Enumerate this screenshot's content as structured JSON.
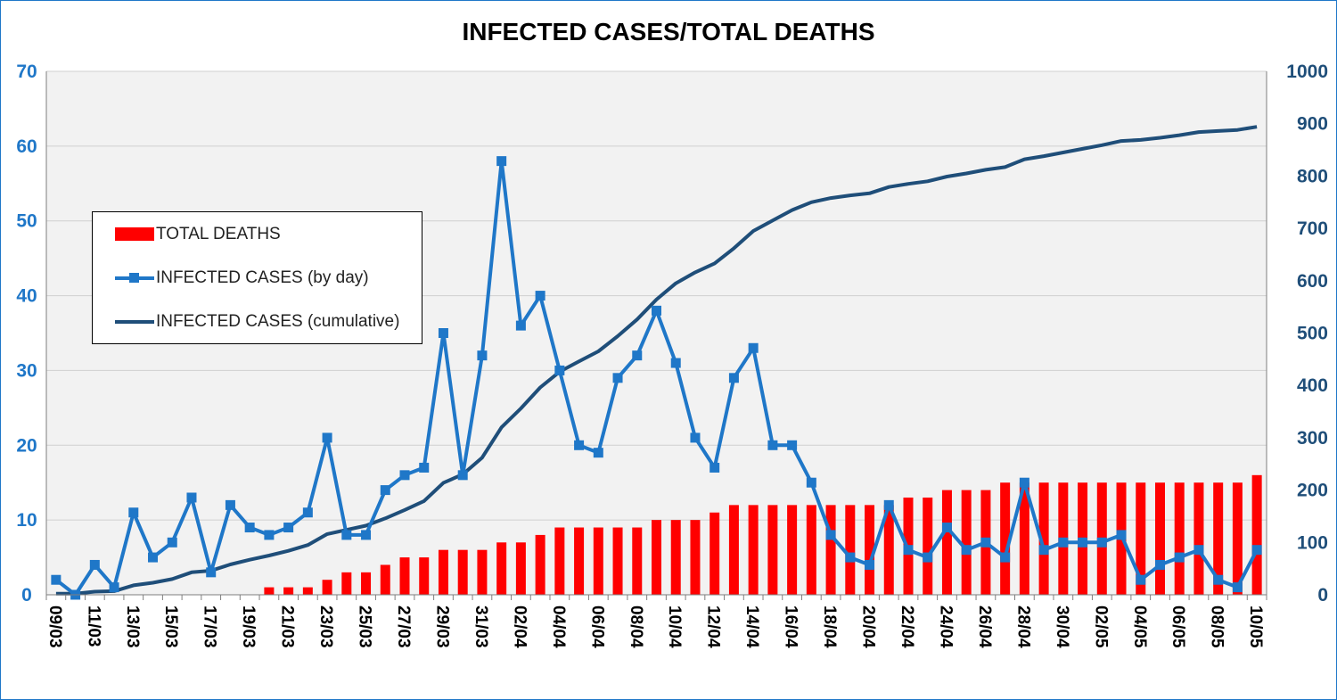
{
  "chart_data": {
    "type": "bar+line",
    "title": "INFECTED CASES/TOTAL DEATHS",
    "categories": [
      "09/03",
      "10/03",
      "11/03",
      "12/03",
      "13/03",
      "14/03",
      "15/03",
      "16/03",
      "17/03",
      "18/03",
      "19/03",
      "20/03",
      "21/03",
      "22/03",
      "23/03",
      "24/03",
      "25/03",
      "26/03",
      "27/03",
      "28/03",
      "29/03",
      "30/03",
      "31/03",
      "01/04",
      "02/04",
      "03/04",
      "04/04",
      "05/04",
      "06/04",
      "07/04",
      "08/04",
      "09/04",
      "10/04",
      "11/04",
      "12/04",
      "13/04",
      "14/04",
      "15/04",
      "16/04",
      "17/04",
      "18/04",
      "19/04",
      "20/04",
      "21/04",
      "22/04",
      "23/04",
      "24/04",
      "25/04",
      "26/04",
      "27/04",
      "28/04",
      "29/04",
      "30/04",
      "01/05",
      "02/05",
      "03/05",
      "04/05",
      "05/05",
      "06/05",
      "07/05",
      "08/05",
      "09/05",
      "10/05"
    ],
    "x_tick_labels": [
      "09/03",
      "11/03",
      "13/03",
      "15/03",
      "17/03",
      "19/03",
      "21/03",
      "23/03",
      "25/03",
      "27/03",
      "29/03",
      "31/03",
      "02/04",
      "04/04",
      "06/04",
      "08/04",
      "10/04",
      "12/04",
      "14/04",
      "16/04",
      "18/04",
      "20/04",
      "22/04",
      "24/04",
      "26/04",
      "28/04",
      "30/04",
      "02/05",
      "04/05",
      "06/05",
      "08/05",
      "10/05"
    ],
    "y_left": {
      "range": [
        0,
        70
      ],
      "ticks": [
        0,
        10,
        20,
        30,
        40,
        50,
        60,
        70
      ]
    },
    "y_right": {
      "range": [
        0,
        1000
      ],
      "ticks": [
        0,
        100,
        200,
        300,
        400,
        500,
        600,
        700,
        800,
        900,
        1000
      ]
    },
    "grid": true,
    "legend_position": "left",
    "series": [
      {
        "name": "TOTAL DEATHS",
        "type": "bar",
        "axis": "left",
        "color": "#ff0000",
        "values": [
          0,
          0,
          0,
          0,
          0,
          0,
          0,
          0,
          0,
          0,
          0,
          1,
          1,
          1,
          2,
          3,
          3,
          4,
          5,
          5,
          6,
          6,
          6,
          7,
          7,
          8,
          9,
          9,
          9,
          9,
          9,
          10,
          10,
          10,
          11,
          12,
          12,
          12,
          12,
          12,
          12,
          12,
          12,
          12,
          13,
          13,
          14,
          14,
          14,
          15,
          15,
          15,
          15,
          15,
          15,
          15,
          15,
          15,
          15,
          15,
          15,
          15,
          16
        ]
      },
      {
        "name": "INFECTED CASES (by day)",
        "type": "line-markers",
        "axis": "left",
        "color": "#1f77c8",
        "values": [
          2,
          0,
          4,
          1,
          11,
          5,
          7,
          13,
          3,
          12,
          9,
          8,
          9,
          11,
          21,
          8,
          8,
          14,
          16,
          17,
          35,
          16,
          32,
          58,
          36,
          40,
          30,
          20,
          19,
          29,
          32,
          38,
          31,
          21,
          17,
          29,
          33,
          20,
          20,
          15,
          8,
          5,
          4,
          12,
          6,
          5,
          9,
          6,
          7,
          5,
          15,
          6,
          7,
          7,
          7,
          8,
          2,
          4,
          5,
          6,
          2,
          1,
          6
        ]
      },
      {
        "name": "INFECTED CASES (cumulative)",
        "type": "line",
        "axis": "right",
        "color": "#1f4e79",
        "values": [
          2,
          2,
          6,
          7,
          18,
          23,
          30,
          43,
          46,
          58,
          67,
          75,
          84,
          95,
          116,
          124,
          132,
          146,
          162,
          179,
          214,
          230,
          262,
          320,
          356,
          396,
          426,
          446,
          465,
          494,
          526,
          564,
          595,
          616,
          633,
          662,
          695,
          715,
          735,
          750,
          758,
          763,
          767,
          779,
          785,
          790,
          799,
          805,
          812,
          817,
          832,
          838,
          845,
          852,
          859,
          867,
          869,
          873,
          878,
          884,
          886,
          888,
          894
        ]
      }
    ]
  },
  "legend": {
    "items": [
      "TOTAL DEATHS",
      "INFECTED CASES (by day)",
      "INFECTED CASES (cumulative)"
    ]
  }
}
